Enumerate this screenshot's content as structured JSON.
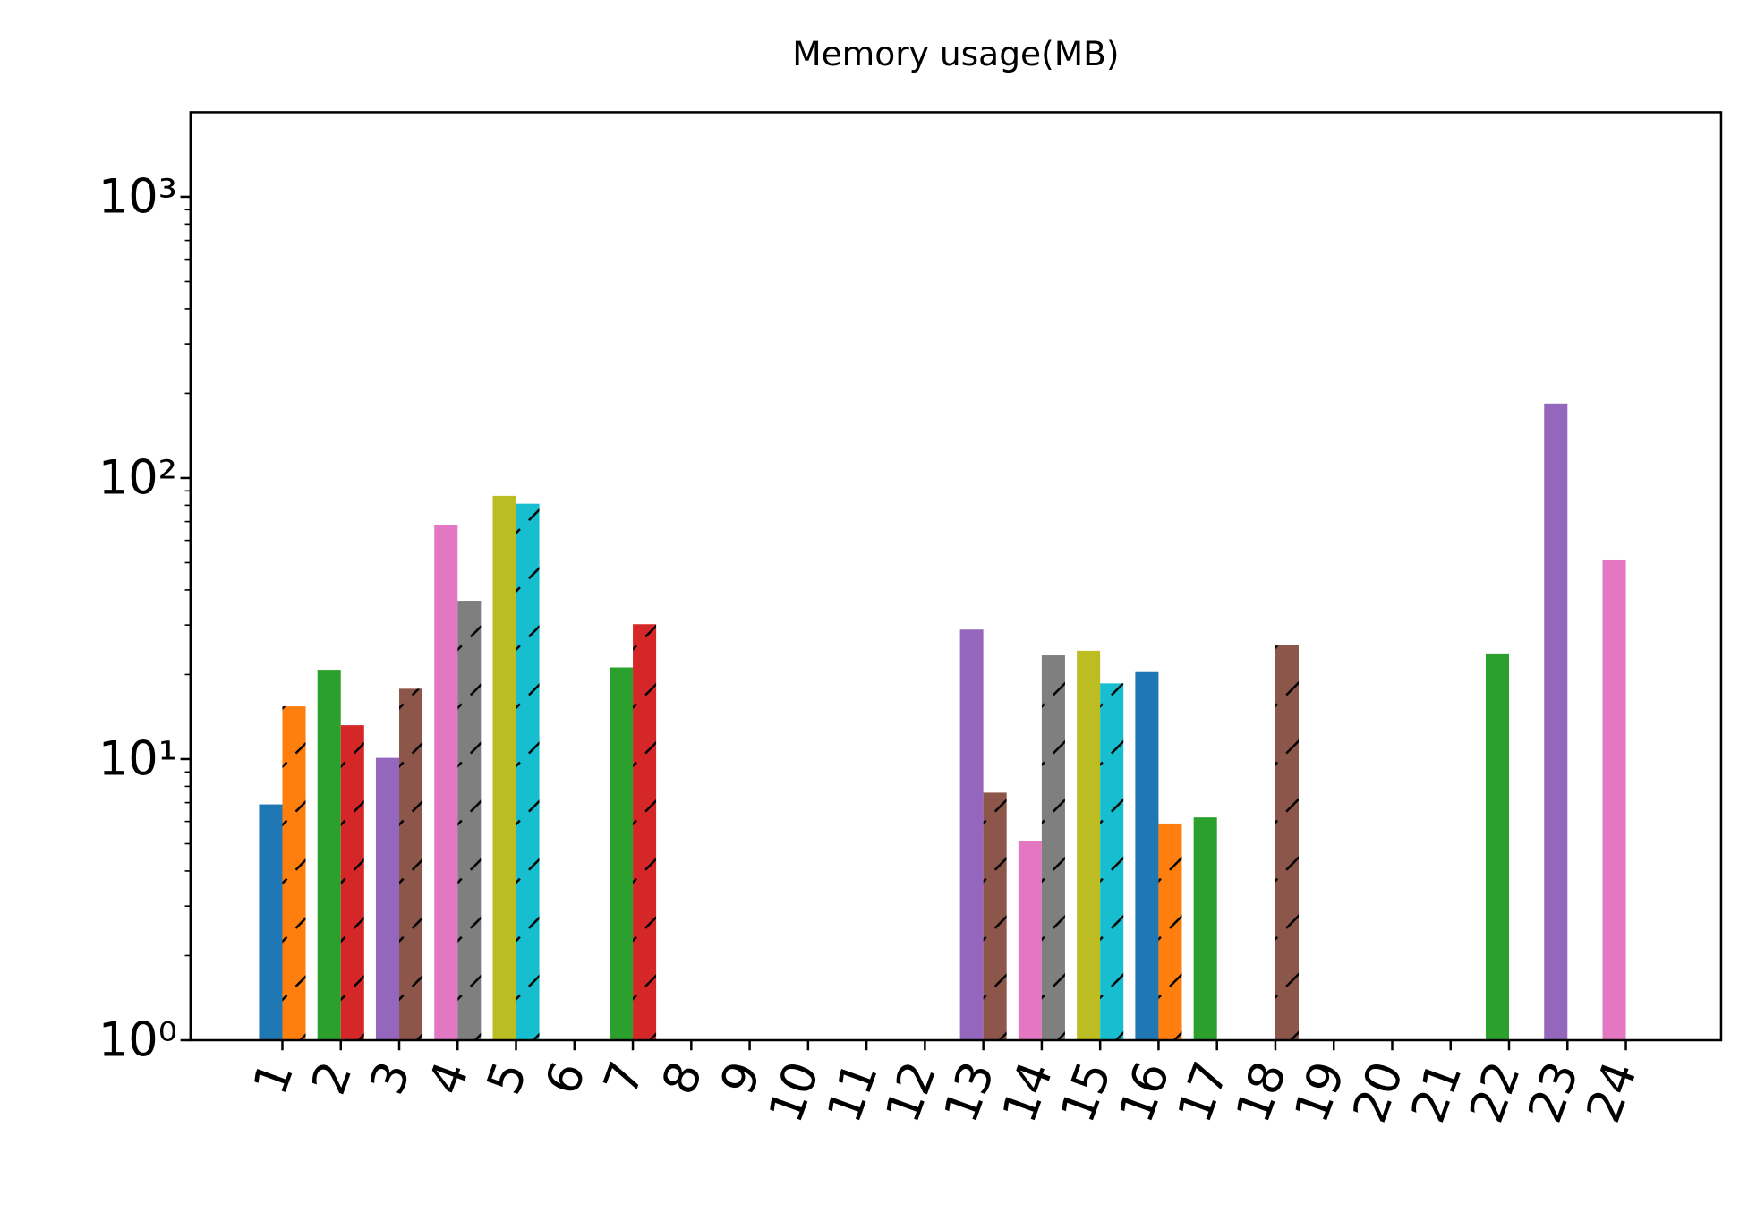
{
  "chart_data": {
    "type": "bar",
    "title": "Memory usage(MB)",
    "categories": [
      "1",
      "2",
      "3",
      "4",
      "5",
      "6",
      "7",
      "8",
      "9",
      "10",
      "11",
      "12",
      "13",
      "14",
      "15",
      "16",
      "17",
      "18",
      "19",
      "20",
      "21",
      "22",
      "23",
      "24"
    ],
    "log_y": true,
    "ylim": [
      1,
      2000
    ],
    "yticks": [
      {
        "value": 1,
        "label": "10⁰"
      },
      {
        "value": 10,
        "label": "10¹"
      },
      {
        "value": 100,
        "label": "10²"
      },
      {
        "value": 1000,
        "label": "10³"
      }
    ],
    "series": [
      {
        "hatch": false,
        "colors": [
          "#1f77b4",
          "#2ca02c",
          "#9467bd",
          "#e377c2",
          "#bcbd22",
          "#1f77b4",
          "#2ca02c",
          "#9467bd",
          "#e377c2",
          "#bcbd22",
          "#1f77b4",
          "#2ca02c",
          "#9467bd",
          "#e377c2",
          "#bcbd22",
          "#1f77b4",
          "#2ca02c",
          "#9467bd",
          "#e377c2",
          "#bcbd22",
          "#1f77b4",
          "#2ca02c",
          "#9467bd",
          "#e377c2"
        ],
        "values": [
          6.9,
          20.8,
          10.1,
          68,
          86.4,
          null,
          21.2,
          null,
          null,
          null,
          null,
          null,
          28.9,
          5.1,
          24.3,
          20.4,
          6.2,
          null,
          null,
          null,
          null,
          23.6,
          184,
          51.3
        ]
      },
      {
        "hatch": true,
        "colors": [
          "#ff7f0e",
          "#d62728",
          "#8c564b",
          "#7f7f7f",
          "#17becf",
          "#ff7f0e",
          "#d62728",
          "#8c564b",
          "#7f7f7f",
          "#17becf",
          "#ff7f0e",
          "#d62728",
          "#8c564b",
          "#7f7f7f",
          "#17becf",
          "#ff7f0e",
          "#d62728",
          "#8c564b",
          "#7f7f7f",
          "#17becf",
          "#ff7f0e",
          "#d62728",
          "#8c564b",
          "#7f7f7f"
        ],
        "values": [
          15.4,
          13.2,
          17.8,
          36.6,
          81,
          null,
          30.2,
          null,
          null,
          null,
          null,
          null,
          7.6,
          23.4,
          18.6,
          5.9,
          null,
          25.4,
          null,
          null,
          null,
          null,
          null,
          null
        ]
      }
    ]
  }
}
